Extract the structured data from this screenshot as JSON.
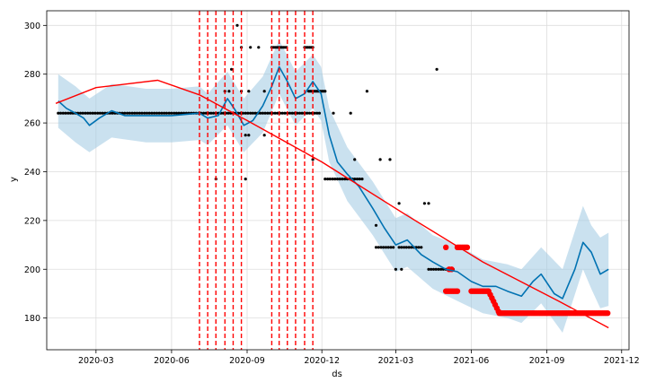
{
  "chart_data": {
    "type": "line",
    "title": "",
    "xlabel": "ds",
    "ylabel": "y",
    "x_range": [
      "2020-01-01",
      "2021-12-10"
    ],
    "ylim": [
      167,
      306
    ],
    "grid": true,
    "x_ticks": [
      "2020-03",
      "2020-06",
      "2020-09",
      "2020-12",
      "2021-03",
      "2021-06",
      "2021-09",
      "2021-12"
    ],
    "y_ticks": [
      180,
      200,
      220,
      240,
      260,
      280,
      300
    ],
    "colors": {
      "forecast": "#0072B2",
      "uncertainty": "#9ec9e2",
      "observed": "#000000",
      "highlighted": "#ff0000",
      "trend": "#ff0000",
      "changepoints": "#ff0000",
      "grid": "#dddddd"
    },
    "series": [
      {
        "role": "forecast",
        "points": [
          [
            "2020-01-15",
            269
          ],
          [
            "2020-01-25",
            266
          ],
          [
            "2020-02-05",
            264
          ],
          [
            "2020-02-15",
            262
          ],
          [
            "2020-02-22",
            259
          ],
          [
            "2020-03-05",
            262
          ],
          [
            "2020-03-20",
            265
          ],
          [
            "2020-04-05",
            263
          ],
          [
            "2020-05-01",
            263
          ],
          [
            "2020-06-01",
            263
          ],
          [
            "2020-07-05",
            264
          ],
          [
            "2020-07-15",
            262
          ],
          [
            "2020-07-28",
            263
          ],
          [
            "2020-08-08",
            270
          ],
          [
            "2020-08-18",
            265
          ],
          [
            "2020-08-28",
            259
          ],
          [
            "2020-09-08",
            261
          ],
          [
            "2020-09-20",
            267
          ],
          [
            "2020-10-01",
            275
          ],
          [
            "2020-10-10",
            283
          ],
          [
            "2020-10-20",
            277
          ],
          [
            "2020-10-30",
            270
          ],
          [
            "2020-11-10",
            272
          ],
          [
            "2020-11-20",
            277
          ],
          [
            "2020-11-30",
            272
          ],
          [
            "2020-12-10",
            255
          ],
          [
            "2020-12-20",
            244
          ],
          [
            "2021-01-01",
            239
          ],
          [
            "2021-01-15",
            234
          ],
          [
            "2021-02-01",
            225
          ],
          [
            "2021-02-15",
            217
          ],
          [
            "2021-03-01",
            210
          ],
          [
            "2021-03-15",
            212
          ],
          [
            "2021-04-01",
            206
          ],
          [
            "2021-04-15",
            203
          ],
          [
            "2021-05-01",
            200
          ],
          [
            "2021-05-15",
            199
          ],
          [
            "2021-06-01",
            195
          ],
          [
            "2021-06-15",
            193
          ],
          [
            "2021-07-01",
            193
          ],
          [
            "2021-07-15",
            191
          ],
          [
            "2021-08-01",
            189
          ],
          [
            "2021-08-15",
            195
          ],
          [
            "2021-08-25",
            198
          ],
          [
            "2021-09-10",
            190
          ],
          [
            "2021-09-20",
            188
          ],
          [
            "2021-10-05",
            200
          ],
          [
            "2021-10-15",
            211
          ],
          [
            "2021-10-25",
            207
          ],
          [
            "2021-11-05",
            198
          ],
          [
            "2021-11-15",
            200
          ]
        ]
      },
      {
        "role": "uncertainty_upper",
        "points": [
          [
            "2020-01-15",
            280
          ],
          [
            "2020-02-05",
            275
          ],
          [
            "2020-02-22",
            270
          ],
          [
            "2020-03-20",
            276
          ],
          [
            "2020-05-01",
            274
          ],
          [
            "2020-06-01",
            274
          ],
          [
            "2020-07-05",
            275
          ],
          [
            "2020-07-15",
            272
          ],
          [
            "2020-08-08",
            281
          ],
          [
            "2020-08-28",
            270
          ],
          [
            "2020-09-20",
            279
          ],
          [
            "2020-10-10",
            294
          ],
          [
            "2020-10-30",
            281
          ],
          [
            "2020-11-20",
            288
          ],
          [
            "2020-11-30",
            283
          ],
          [
            "2020-12-10",
            266
          ],
          [
            "2021-01-01",
            250
          ],
          [
            "2021-02-01",
            236
          ],
          [
            "2021-03-01",
            221
          ],
          [
            "2021-03-15",
            223
          ],
          [
            "2021-04-15",
            214
          ],
          [
            "2021-05-15",
            210
          ],
          [
            "2021-06-15",
            204
          ],
          [
            "2021-07-15",
            202
          ],
          [
            "2021-08-01",
            200
          ],
          [
            "2021-08-25",
            209
          ],
          [
            "2021-09-20",
            200
          ],
          [
            "2021-10-15",
            226
          ],
          [
            "2021-10-25",
            218
          ],
          [
            "2021-11-05",
            213
          ],
          [
            "2021-11-15",
            215
          ]
        ]
      },
      {
        "role": "uncertainty_lower",
        "points": [
          [
            "2020-01-15",
            258
          ],
          [
            "2020-02-05",
            252
          ],
          [
            "2020-02-22",
            248
          ],
          [
            "2020-03-20",
            254
          ],
          [
            "2020-05-01",
            252
          ],
          [
            "2020-06-01",
            252
          ],
          [
            "2020-07-05",
            253
          ],
          [
            "2020-07-15",
            251
          ],
          [
            "2020-08-08",
            259
          ],
          [
            "2020-08-28",
            248
          ],
          [
            "2020-09-20",
            256
          ],
          [
            "2020-10-10",
            272
          ],
          [
            "2020-10-30",
            259
          ],
          [
            "2020-11-20",
            266
          ],
          [
            "2020-11-30",
            261
          ],
          [
            "2020-12-10",
            244
          ],
          [
            "2021-01-01",
            228
          ],
          [
            "2021-02-01",
            214
          ],
          [
            "2021-03-01",
            199
          ],
          [
            "2021-03-15",
            201
          ],
          [
            "2021-04-15",
            192
          ],
          [
            "2021-05-15",
            187
          ],
          [
            "2021-06-15",
            182
          ],
          [
            "2021-07-15",
            180
          ],
          [
            "2021-08-01",
            178
          ],
          [
            "2021-08-25",
            186
          ],
          [
            "2021-09-20",
            174
          ],
          [
            "2021-10-15",
            200
          ],
          [
            "2021-10-25",
            192
          ],
          [
            "2021-11-05",
            184
          ],
          [
            "2021-11-15",
            185
          ]
        ]
      },
      {
        "role": "trend",
        "points": [
          [
            "2020-01-12",
            268
          ],
          [
            "2020-03-01",
            274.5
          ],
          [
            "2020-05-15",
            277.5
          ],
          [
            "2020-07-05",
            271.5
          ],
          [
            "2020-09-01",
            261
          ],
          [
            "2020-12-01",
            244
          ],
          [
            "2021-03-10",
            223
          ],
          [
            "2021-06-15",
            203
          ],
          [
            "2021-09-15",
            187
          ],
          [
            "2021-11-15",
            176
          ]
        ]
      }
    ],
    "changepoints": [
      "2020-07-05",
      "2020-07-15",
      "2020-07-25",
      "2020-08-05",
      "2020-08-15",
      "2020-08-25",
      "2020-10-01",
      "2020-10-10",
      "2020-10-20",
      "2020-10-30",
      "2020-11-10",
      "2020-11-20"
    ],
    "observed_runs": [
      {
        "from": "2020-01-15",
        "to": "2020-11-30",
        "y": 264,
        "step": 3
      },
      {
        "from": "2020-12-05",
        "to": "2021-01-20",
        "y": 237,
        "step": 3
      },
      {
        "from": "2021-02-05",
        "to": "2021-02-28",
        "y": 209,
        "step": 3
      },
      {
        "from": "2021-03-05",
        "to": "2021-04-01",
        "y": 209,
        "step": 3
      },
      {
        "from": "2021-04-10",
        "to": "2021-05-10",
        "y": 200,
        "step": 3
      },
      {
        "from": "2020-10-01",
        "to": "2020-10-20",
        "y": 291,
        "step": 2
      },
      {
        "from": "2020-11-10",
        "to": "2020-11-20",
        "y": 291,
        "step": 2
      },
      {
        "from": "2020-11-15",
        "to": "2020-12-05",
        "y": 273,
        "step": 2
      }
    ],
    "observed_points": [
      [
        "2020-08-20",
        300
      ],
      [
        "2020-08-13",
        282
      ],
      [
        "2020-08-05",
        273
      ],
      [
        "2020-08-10",
        273
      ],
      [
        "2020-08-25",
        291
      ],
      [
        "2020-08-25",
        273
      ],
      [
        "2020-09-05",
        291
      ],
      [
        "2020-09-03",
        273
      ],
      [
        "2020-09-15",
        291
      ],
      [
        "2020-09-22",
        273
      ],
      [
        "2020-08-30",
        255
      ],
      [
        "2020-09-03",
        255
      ],
      [
        "2020-09-22",
        255
      ],
      [
        "2020-08-30",
        237
      ],
      [
        "2020-07-25",
        237
      ],
      [
        "2021-04-20",
        282
      ],
      [
        "2021-01-25",
        273
      ],
      [
        "2021-01-10",
        245
      ],
      [
        "2021-02-10",
        245
      ],
      [
        "2021-02-22",
        245
      ],
      [
        "2021-03-05",
        227
      ],
      [
        "2021-04-05",
        227
      ],
      [
        "2021-04-10",
        227
      ],
      [
        "2021-02-05",
        218
      ],
      [
        "2021-03-01",
        200
      ],
      [
        "2021-03-08",
        200
      ],
      [
        "2020-12-15",
        264
      ],
      [
        "2021-01-05",
        264
      ],
      [
        "2020-11-20",
        245
      ]
    ],
    "highlighted_runs": [
      {
        "from": "2021-05-01",
        "to": "2021-05-15",
        "y": 191,
        "step": 2
      },
      {
        "from": "2021-06-01",
        "to": "2021-06-22",
        "y": 191,
        "step": 2
      },
      {
        "from": "2021-06-22",
        "to": "2021-07-05",
        "y_from": 191,
        "y_to": 182,
        "step": 2
      },
      {
        "from": "2021-07-05",
        "to": "2021-11-15",
        "y": 182,
        "step": 2
      },
      {
        "from": "2021-05-15",
        "to": "2021-05-28",
        "y": 209,
        "step": 2
      }
    ],
    "highlighted_points": [
      [
        "2021-05-01",
        209
      ],
      [
        "2021-05-05",
        200
      ],
      [
        "2021-05-08",
        200
      ]
    ]
  }
}
